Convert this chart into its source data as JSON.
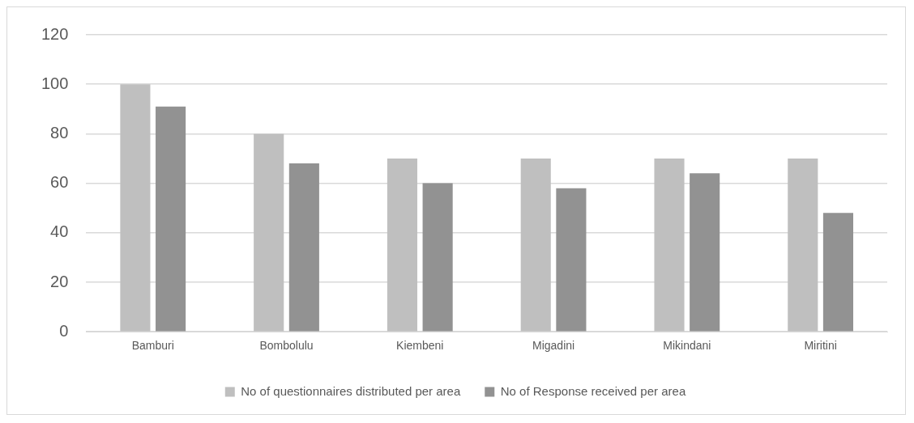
{
  "chart_data": {
    "type": "bar",
    "categories": [
      "Bamburi",
      "Bombolulu",
      "Kiembeni",
      "Migadini",
      "Mikindani",
      "Miritini"
    ],
    "series": [
      {
        "name": "No of questionnaires distributed per area",
        "color": "#bfbfbf",
        "values": [
          100,
          80,
          70,
          70,
          70,
          70
        ]
      },
      {
        "name": "No of Response received per area",
        "color": "#929292",
        "values": [
          91,
          68,
          60,
          58,
          64,
          48
        ]
      }
    ],
    "ylim": [
      0,
      120
    ],
    "yticks": [
      0,
      20,
      40,
      60,
      80,
      100,
      120
    ],
    "grid": "y",
    "legend": "bottom"
  }
}
